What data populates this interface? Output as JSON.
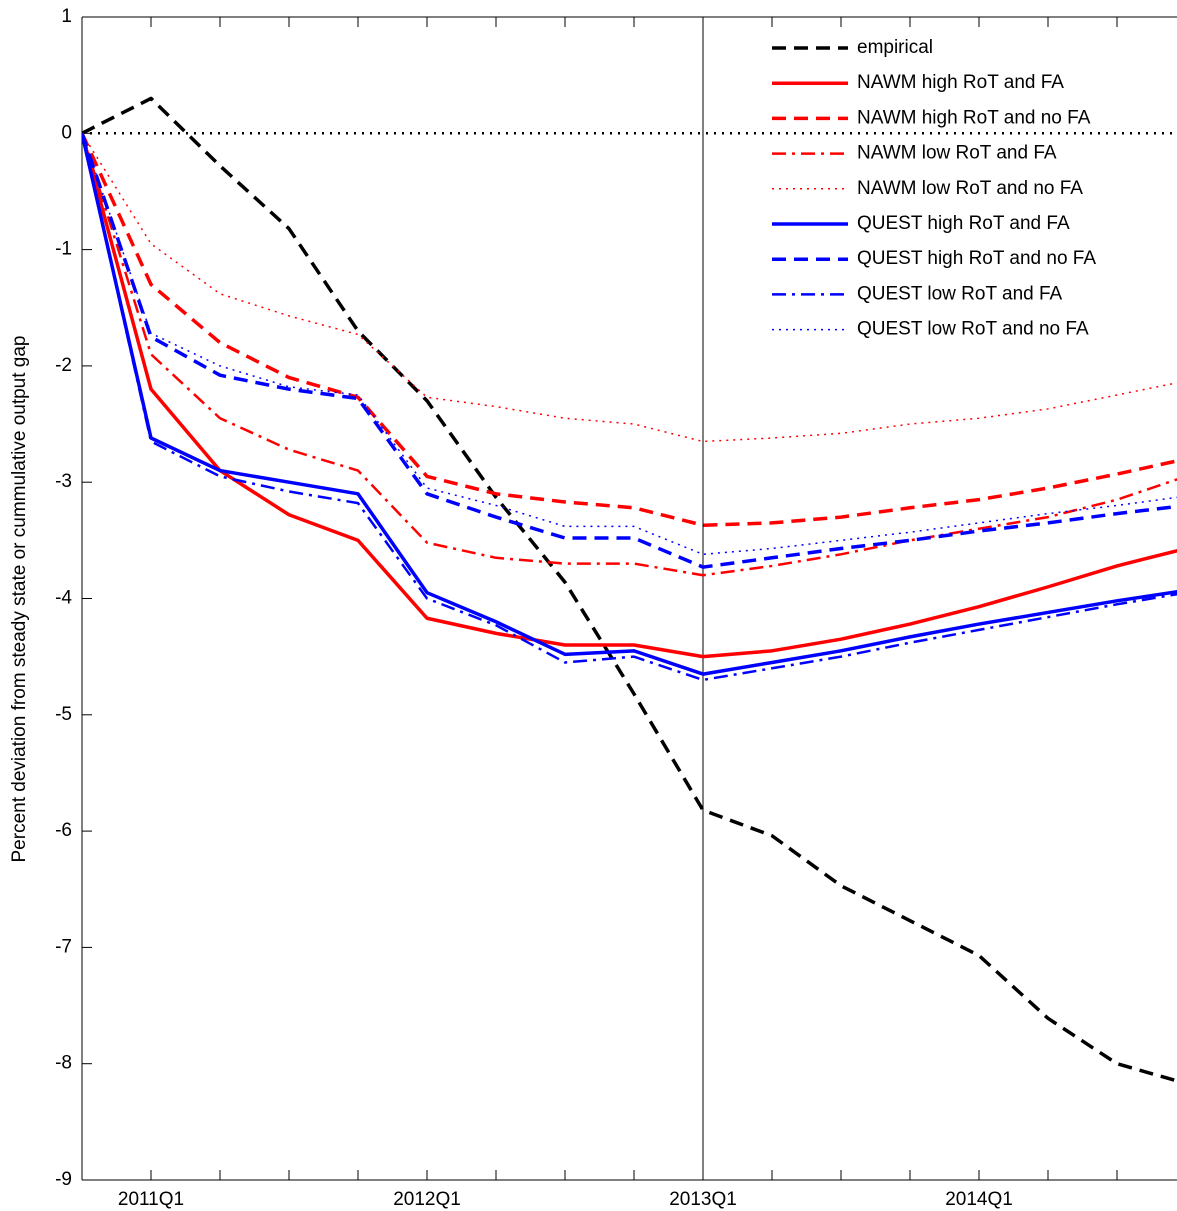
{
  "chart_data": {
    "type": "line",
    "y_label": "Percent deviation from steady state or cummulative output gap",
    "categories": [
      null,
      "2011Q1",
      null,
      null,
      null,
      "2012Q1",
      null,
      null,
      null,
      "2013Q1",
      null,
      null,
      null,
      "2014Q1",
      null,
      null,
      null
    ],
    "ylim": [
      -9,
      1
    ],
    "yticks": [
      -9,
      -8,
      -7,
      -6,
      -5,
      -4,
      -3,
      -2,
      -1,
      0,
      1
    ],
    "hline": 0,
    "vline": "2013Q1",
    "legend": "upper right",
    "series": [
      {
        "name": "empirical",
        "color": "#000000",
        "style": "dashed",
        "values": [
          0,
          0.3,
          -0.28,
          -0.82,
          -1.7,
          -2.3,
          -3.13,
          -3.86,
          -4.82,
          -5.82,
          -6.04,
          -6.47,
          -6.77,
          -7.07,
          -7.61,
          -8.0,
          -8.17
        ]
      },
      {
        "name": "NAWM high RoT and FA",
        "color": "#ff0000",
        "style": "solid",
        "values": [
          0,
          -2.2,
          -2.9,
          -3.28,
          -3.5,
          -4.17,
          -4.3,
          -4.4,
          -4.4,
          -4.5,
          -4.45,
          -4.35,
          -4.22,
          -4.07,
          -3.9,
          -3.72,
          -3.57
        ]
      },
      {
        "name": "NAWM high RoT and no FA",
        "color": "#ff0000",
        "style": "dashed",
        "values": [
          0,
          -1.3,
          -1.8,
          -2.1,
          -2.27,
          -2.95,
          -3.1,
          -3.17,
          -3.22,
          -3.37,
          -3.35,
          -3.3,
          -3.22,
          -3.15,
          -3.05,
          -2.93,
          -2.8
        ]
      },
      {
        "name": "NAWM low RoT and FA",
        "color": "#ff0000",
        "style": "dashdot",
        "values": [
          0,
          -1.9,
          -2.45,
          -2.72,
          -2.9,
          -3.52,
          -3.65,
          -3.7,
          -3.7,
          -3.8,
          -3.72,
          -3.62,
          -3.5,
          -3.4,
          -3.3,
          -3.15,
          -2.95
        ]
      },
      {
        "name": "NAWM low RoT and no FA",
        "color": "#ff0000",
        "style": "dotted",
        "values": [
          0,
          -0.95,
          -1.38,
          -1.57,
          -1.73,
          -2.27,
          -2.35,
          -2.45,
          -2.5,
          -2.65,
          -2.62,
          -2.58,
          -2.5,
          -2.45,
          -2.37,
          -2.25,
          -2.13
        ]
      },
      {
        "name": "QUEST high RoT and FA",
        "color": "#0000ff",
        "style": "solid",
        "values": [
          0,
          -2.62,
          -2.9,
          -3.0,
          -3.1,
          -3.95,
          -4.2,
          -4.48,
          -4.45,
          -4.65,
          -4.55,
          -4.45,
          -4.33,
          -4.22,
          -4.12,
          -4.02,
          -3.93
        ]
      },
      {
        "name": "QUEST high RoT and no FA",
        "color": "#0000ff",
        "style": "dashed",
        "values": [
          0,
          -1.75,
          -2.08,
          -2.2,
          -2.28,
          -3.1,
          -3.3,
          -3.48,
          -3.48,
          -3.73,
          -3.65,
          -3.57,
          -3.5,
          -3.42,
          -3.35,
          -3.27,
          -3.2
        ]
      },
      {
        "name": "QUEST low RoT and FA",
        "color": "#0000ff",
        "style": "dashdot",
        "values": [
          0,
          -2.65,
          -2.95,
          -3.08,
          -3.18,
          -4.0,
          -4.23,
          -4.55,
          -4.5,
          -4.7,
          -4.6,
          -4.5,
          -4.38,
          -4.27,
          -4.16,
          -4.05,
          -3.95
        ]
      },
      {
        "name": "QUEST low RoT and no FA",
        "color": "#0000ff",
        "style": "dotted",
        "values": [
          0,
          -1.72,
          -2.0,
          -2.18,
          -2.25,
          -3.05,
          -3.2,
          -3.38,
          -3.38,
          -3.62,
          -3.57,
          -3.5,
          -3.43,
          -3.35,
          -3.27,
          -3.2,
          -3.12
        ]
      }
    ]
  }
}
